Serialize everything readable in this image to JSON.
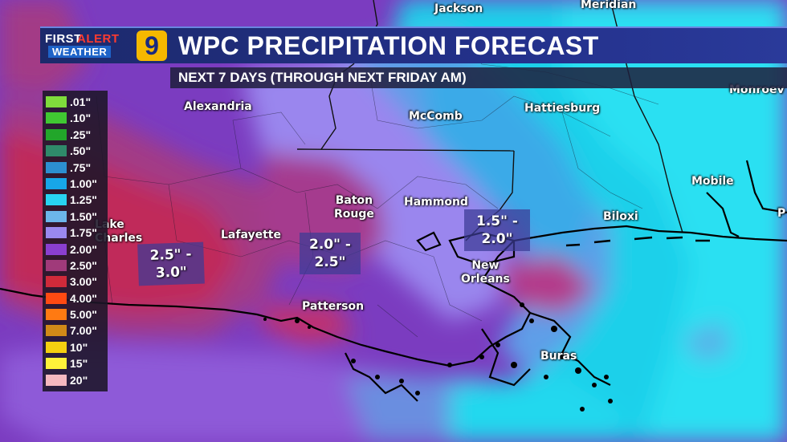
{
  "header": {
    "logo": {
      "first": "FIRST",
      "alert": "ALERT",
      "weather": "WEATHER",
      "channel": "9"
    },
    "title": "WPC PRECIPITATION FORECAST",
    "subtitle": "NEXT 7 DAYS (THROUGH NEXT FRIDAY AM)"
  },
  "legend": {
    "items": [
      {
        "label": ".01\"",
        "color": "#7fdc3c"
      },
      {
        "label": ".10\"",
        "color": "#40c832"
      },
      {
        "label": ".25\"",
        "color": "#22a62a"
      },
      {
        "label": ".50\"",
        "color": "#2f8a6a"
      },
      {
        "label": ".75\"",
        "color": "#2c8fd0"
      },
      {
        "label": "1.00\"",
        "color": "#17a6e8"
      },
      {
        "label": "1.25\"",
        "color": "#28d4f2"
      },
      {
        "label": "1.50\"",
        "color": "#6cb6ea"
      },
      {
        "label": "1.75\"",
        "color": "#9a88ee"
      },
      {
        "label": "2.00\"",
        "color": "#8a3fd0"
      },
      {
        "label": "2.50\"",
        "color": "#a03a7a"
      },
      {
        "label": "3.00\"",
        "color": "#d02a3a"
      },
      {
        "label": "4.00\"",
        "color": "#ff4a12"
      },
      {
        "label": "5.00\"",
        "color": "#ff7a12"
      },
      {
        "label": "7.00\"",
        "color": "#d08a18"
      },
      {
        "label": "10\"",
        "color": "#f5d010"
      },
      {
        "label": "15\"",
        "color": "#fff23a"
      },
      {
        "label": "20\"",
        "color": "#f5b8c0"
      }
    ]
  },
  "cities": {
    "jackson": "Jackson",
    "meridian": "Meridian",
    "monroeville": "Monroev",
    "alexandria": "Alexandria",
    "mccomb": "McComb",
    "hattiesburg": "Hattiesburg",
    "mobile": "Mobile",
    "baton_rouge": "Baton\nRouge",
    "hammond": "Hammond",
    "biloxi": "Biloxi",
    "lake_charles": "Lake\nCharles",
    "lafayette": "Lafayette",
    "new_orleans": "New\nOrleans",
    "patterson": "Patterson",
    "buras": "Buras",
    "pensacola": "P"
  },
  "amounts": {
    "west": "2.5\" -\n3.0\"",
    "central": "2.0\" -\n2.5\"",
    "east": "1.5\" -\n2.0\""
  }
}
